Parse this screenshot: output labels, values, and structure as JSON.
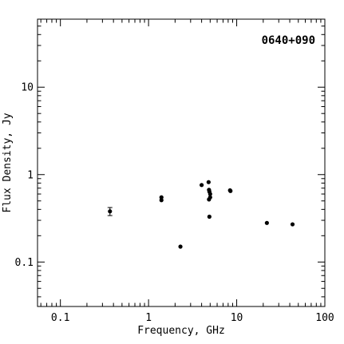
{
  "chart_data": {
    "type": "scatter",
    "title": "0640+090",
    "xlabel": "Frequency, GHz",
    "ylabel": "Flux Density, Jy",
    "xscale": "log",
    "yscale": "log",
    "xlim": [
      0.055,
      100
    ],
    "ylim": [
      0.031,
      60
    ],
    "x_ticks": [
      0.1,
      1,
      10,
      100
    ],
    "x_tick_labels": [
      "0.1",
      "1",
      "10",
      "100"
    ],
    "y_ticks": [
      0.1,
      1,
      10
    ],
    "y_tick_labels": [
      "0.1",
      "1",
      "10"
    ],
    "grid": false,
    "legend": "none",
    "points": [
      {
        "x": 0.365,
        "y": 0.38,
        "yerr": 0.04
      },
      {
        "x": 1.4,
        "y": 0.55
      },
      {
        "x": 1.4,
        "y": 0.51
      },
      {
        "x": 2.3,
        "y": 0.15
      },
      {
        "x": 4.0,
        "y": 0.76
      },
      {
        "x": 4.8,
        "y": 0.82
      },
      {
        "x": 4.85,
        "y": 0.67
      },
      {
        "x": 4.9,
        "y": 0.64
      },
      {
        "x": 5.0,
        "y": 0.6
      },
      {
        "x": 5.0,
        "y": 0.55
      },
      {
        "x": 4.85,
        "y": 0.52
      },
      {
        "x": 4.9,
        "y": 0.33
      },
      {
        "x": 8.4,
        "y": 0.66
      },
      {
        "x": 8.5,
        "y": 0.65
      },
      {
        "x": 22.0,
        "y": 0.28
      },
      {
        "x": 43.0,
        "y": 0.27
      }
    ]
  }
}
